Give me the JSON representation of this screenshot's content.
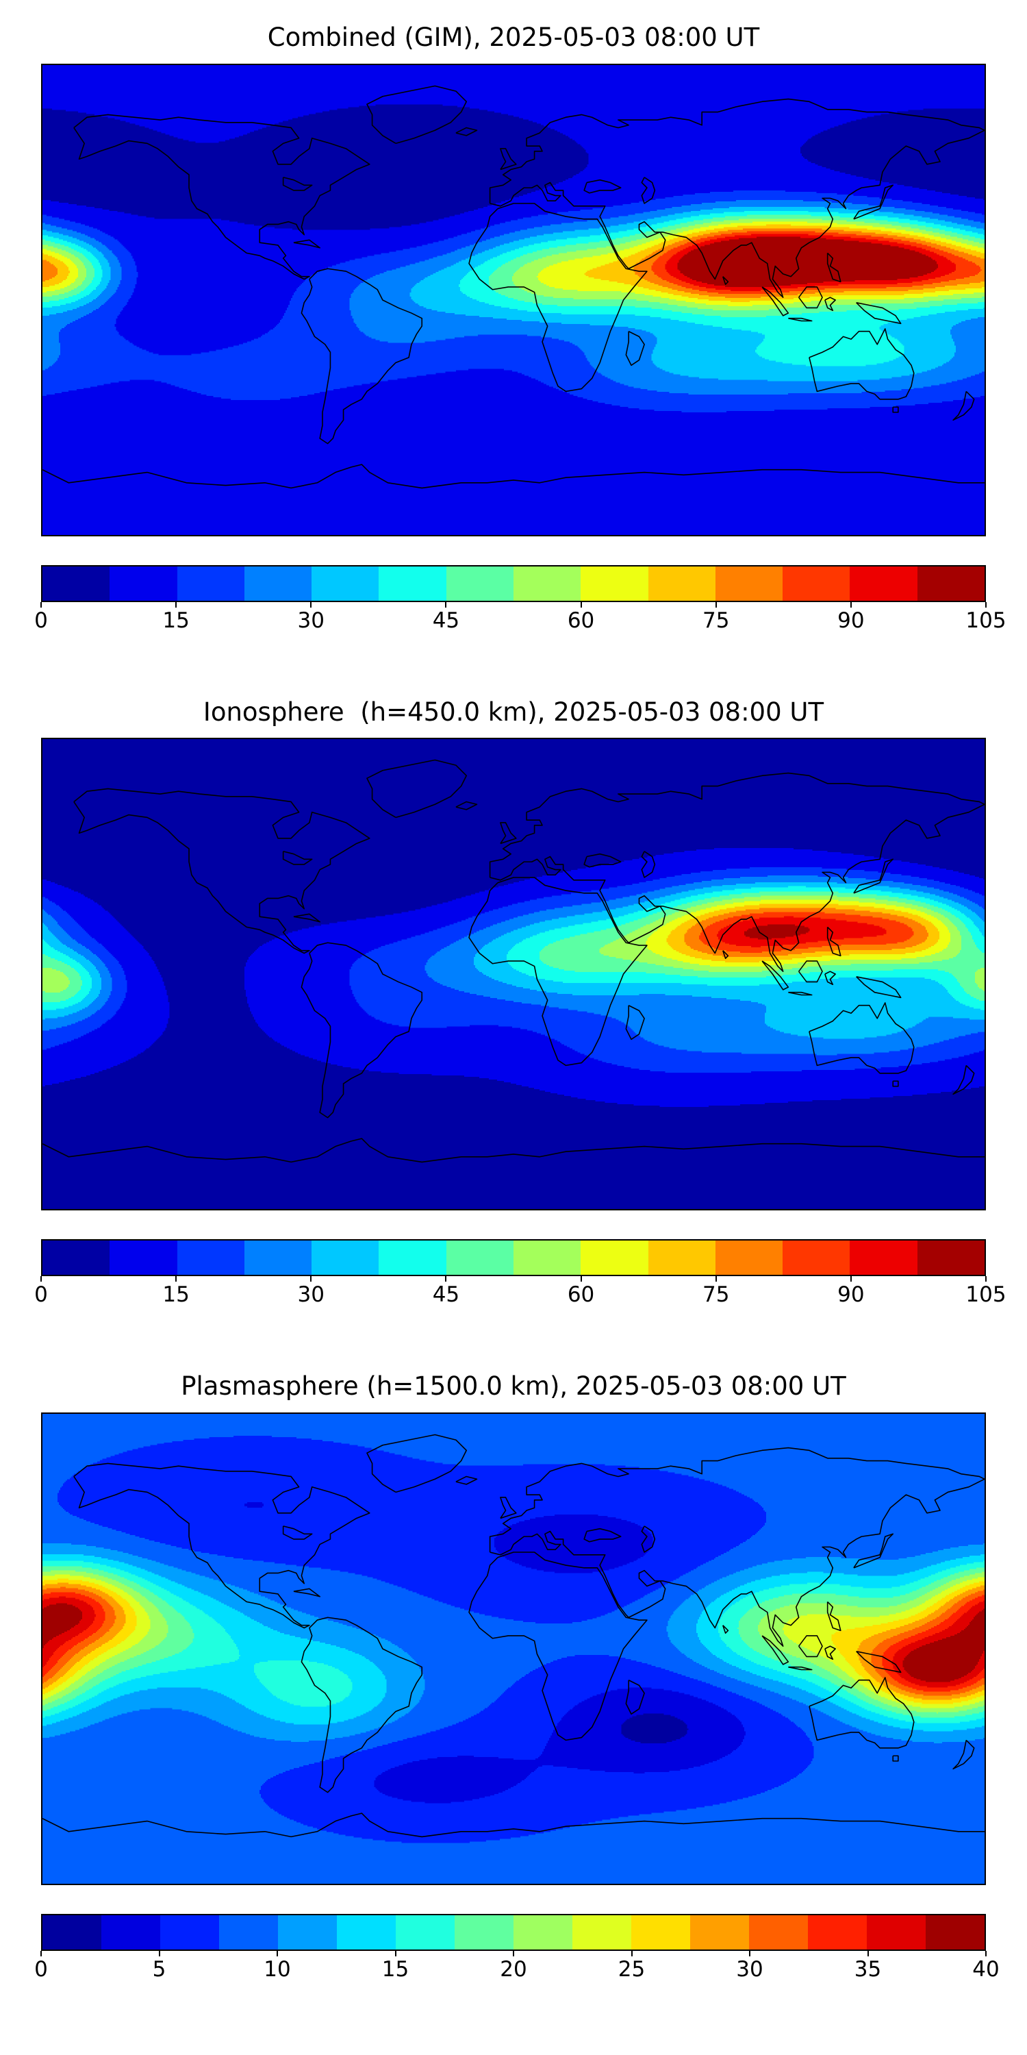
{
  "chart_data": [
    {
      "type": "heatmap",
      "title": "Combined (GIM), 2025-05-03 08:00 UT",
      "projection": "equirectangular",
      "lon_range": [
        -180,
        180
      ],
      "lat_range": [
        -90,
        90
      ],
      "colormap": "jet",
      "grid": false,
      "vmin": 0,
      "vmax": 105,
      "n_levels": 14,
      "colorbar_orientation": "horizontal",
      "colorbar_ticks": [
        0,
        15,
        30,
        45,
        60,
        75,
        90,
        105
      ],
      "field": {
        "base": 8,
        "hotspots": [
          {
            "lon": 120,
            "lat": 16,
            "amp": 95,
            "sx": 32,
            "sy": 11
          },
          {
            "lon": 78,
            "lat": 13,
            "amp": 70,
            "sx": 24,
            "sy": 12
          },
          {
            "lon": 158,
            "lat": 12,
            "amp": 45,
            "sx": 20,
            "sy": 10
          },
          {
            "lon": 22,
            "lat": 10,
            "amp": 48,
            "sx": 26,
            "sy": 12
          },
          {
            "lon": -172,
            "lat": 10,
            "amp": 40,
            "sx": 14,
            "sy": 9
          },
          {
            "lon": 135,
            "lat": -20,
            "amp": 30,
            "sx": 40,
            "sy": 12
          },
          {
            "lon": 60,
            "lat": -25,
            "amp": 18,
            "sx": 35,
            "sy": 12
          },
          {
            "lon": -30,
            "lat": 6,
            "amp": 15,
            "sx": 35,
            "sy": 10
          },
          {
            "lon": -40,
            "lat": -12,
            "amp": 12,
            "sx": 30,
            "sy": 12
          },
          {
            "lon": -100,
            "lat": -30,
            "amp": 8,
            "sx": 40,
            "sy": 15
          },
          {
            "lon": -40,
            "lat": 45,
            "amp": -5,
            "sx": 35,
            "sy": 14
          },
          {
            "lon": 170,
            "lat": 45,
            "amp": -4,
            "sx": 35,
            "sy": 14
          }
        ]
      }
    },
    {
      "type": "heatmap",
      "title": "Ionosphere  (h=450.0 km), 2025-05-03 08:00 UT",
      "projection": "equirectangular",
      "lon_range": [
        -180,
        180
      ],
      "lat_range": [
        -90,
        90
      ],
      "colormap": "jet",
      "grid": false,
      "vmin": 0,
      "vmax": 105,
      "n_levels": 14,
      "colorbar_orientation": "horizontal",
      "colorbar_ticks": [
        0,
        15,
        30,
        45,
        60,
        75,
        90,
        105
      ],
      "field": {
        "base": 6,
        "hotspots": [
          {
            "lon": 122,
            "lat": 18,
            "amp": 72,
            "sx": 30,
            "sy": 11
          },
          {
            "lon": 80,
            "lat": 14,
            "amp": 55,
            "sx": 24,
            "sy": 12
          },
          {
            "lon": 156,
            "lat": 14,
            "amp": 35,
            "sx": 18,
            "sy": 10
          },
          {
            "lon": 25,
            "lat": 8,
            "amp": 38,
            "sx": 28,
            "sy": 13
          },
          {
            "lon": -174,
            "lat": -3,
            "amp": 42,
            "sx": 14,
            "sy": 9
          },
          {
            "lon": 135,
            "lat": -18,
            "amp": 26,
            "sx": 38,
            "sy": 12
          },
          {
            "lon": 60,
            "lat": -25,
            "amp": 14,
            "sx": 35,
            "sy": 12
          },
          {
            "lon": -30,
            "lat": 5,
            "amp": 10,
            "sx": 35,
            "sy": 10
          },
          {
            "lon": -40,
            "lat": -15,
            "amp": 9,
            "sx": 30,
            "sy": 12
          },
          {
            "lon": -40,
            "lat": 45,
            "amp": -4,
            "sx": 35,
            "sy": 14
          },
          {
            "lon": 170,
            "lat": 45,
            "amp": -3,
            "sx": 35,
            "sy": 14
          }
        ]
      }
    },
    {
      "type": "heatmap",
      "title": "Plasmasphere (h=1500.0 km), 2025-05-03 08:00 UT",
      "projection": "equirectangular",
      "lon_range": [
        -180,
        180
      ],
      "lat_range": [
        -90,
        90
      ],
      "colormap": "jet",
      "grid": false,
      "vmin": 0,
      "vmax": 40,
      "n_levels": 16,
      "colorbar_orientation": "horizontal",
      "colorbar_ticks": [
        0,
        5,
        10,
        15,
        20,
        25,
        30,
        35,
        40
      ],
      "field": {
        "base": 8,
        "hotspots": [
          {
            "lon": 162,
            "lat": -8,
            "amp": 30,
            "sx": 22,
            "sy": 12
          },
          {
            "lon": -173,
            "lat": 16,
            "amp": 24,
            "sx": 20,
            "sy": 11
          },
          {
            "lon": 112,
            "lat": 8,
            "amp": 15,
            "sx": 28,
            "sy": 14
          },
          {
            "lon": -140,
            "lat": 5,
            "amp": 10,
            "sx": 30,
            "sy": 14
          },
          {
            "lon": -75,
            "lat": -15,
            "amp": 8,
            "sx": 25,
            "sy": 14
          },
          {
            "lon": 55,
            "lat": -30,
            "amp": -6,
            "sx": 30,
            "sy": 14
          },
          {
            "lon": 25,
            "lat": 40,
            "amp": -4,
            "sx": 40,
            "sy": 15
          },
          {
            "lon": -100,
            "lat": 55,
            "amp": -3,
            "sx": 40,
            "sy": 14
          },
          {
            "lon": -30,
            "lat": -50,
            "amp": -4,
            "sx": 35,
            "sy": 12
          }
        ]
      }
    }
  ]
}
